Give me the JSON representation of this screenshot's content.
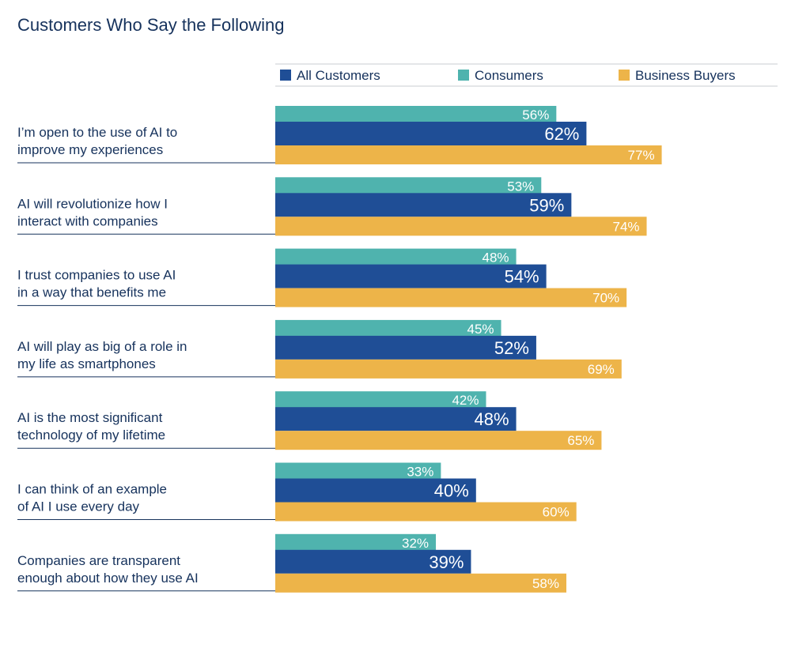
{
  "chart_data": {
    "type": "bar",
    "orientation": "horizontal",
    "title": "Customers Who Say the Following",
    "legend_position": "top",
    "grid": false,
    "xlim": [
      0,
      100
    ],
    "value_format": "{v}%",
    "categories": [
      [
        "I’m open to the use of AI to",
        "improve my experiences"
      ],
      [
        "AI will revolutionize how I",
        "interact with companies"
      ],
      [
        "I trust companies to use AI",
        "in a way that benefits me"
      ],
      [
        "AI will play as big of a role in",
        "my life as smartphones"
      ],
      [
        "AI is the most significant",
        "technology of my lifetime"
      ],
      [
        "I can think of an example",
        "of AI I use every day"
      ],
      [
        "Companies are transparent",
        "enough about how they use AI"
      ]
    ],
    "series": [
      {
        "name": "Consumers",
        "color": "#4fb3ae",
        "values": [
          56,
          53,
          48,
          45,
          42,
          33,
          32
        ]
      },
      {
        "name": "All Customers",
        "color": "#1f4e96",
        "values": [
          62,
          59,
          54,
          52,
          48,
          40,
          39
        ]
      },
      {
        "name": "Business Buyers",
        "color": "#edb449",
        "values": [
          77,
          74,
          70,
          69,
          65,
          60,
          58
        ]
      }
    ],
    "legend_order": [
      "All Customers",
      "Consumers",
      "Business Buyers"
    ]
  }
}
